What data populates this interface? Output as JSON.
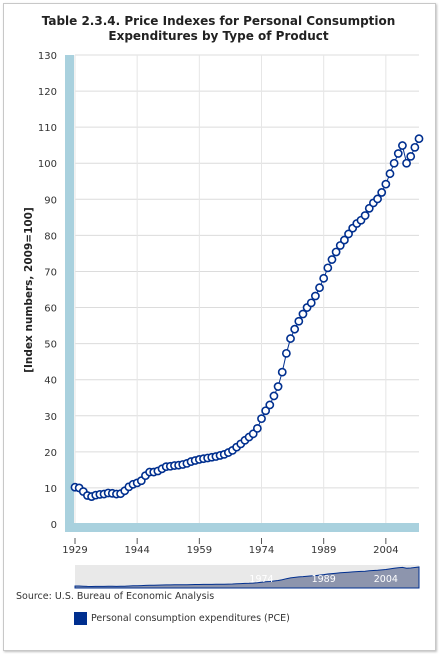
{
  "title": "Table 2.3.4. Price Indexes for Personal Consumption Expenditures by Type of Product",
  "source_text": "Source: U.S. Bureau of Economic Analysis",
  "colors": {
    "series": "#002f8f",
    "axis_band": "#a9d1de",
    "navigator_fill": "#8d95ad",
    "navigator_bg": "#e9e9e9"
  },
  "chart_data": {
    "type": "line",
    "ylabel": "[Index numbers, 2009=100]",
    "xlabel": "",
    "ylim": [
      0,
      130
    ],
    "yticks": [
      0,
      10,
      20,
      30,
      40,
      50,
      60,
      70,
      80,
      90,
      100,
      110,
      120,
      130
    ],
    "xlim": [
      1929,
      2012
    ],
    "xticks": [
      1929,
      1944,
      1959,
      1974,
      1989,
      2004
    ],
    "navigator_ticks": [
      1974,
      1989,
      2004
    ],
    "grid": true,
    "legend_position": "bottom-left",
    "series": [
      {
        "name": "Personal consumption expenditures (PCE)",
        "x": [
          1929,
          1930,
          1931,
          1932,
          1933,
          1934,
          1935,
          1936,
          1937,
          1938,
          1939,
          1940,
          1941,
          1942,
          1943,
          1944,
          1945,
          1946,
          1947,
          1948,
          1949,
          1950,
          1951,
          1952,
          1953,
          1954,
          1955,
          1956,
          1957,
          1958,
          1959,
          1960,
          1961,
          1962,
          1963,
          1964,
          1965,
          1966,
          1967,
          1968,
          1969,
          1970,
          1971,
          1972,
          1973,
          1974,
          1975,
          1976,
          1977,
          1978,
          1979,
          1980,
          1981,
          1982,
          1983,
          1984,
          1985,
          1986,
          1987,
          1988,
          1989,
          1990,
          1991,
          1992,
          1993,
          1994,
          1995,
          1996,
          1997,
          1998,
          1999,
          2000,
          2001,
          2002,
          2003,
          2004,
          2005,
          2006,
          2007,
          2008,
          2009,
          2010,
          2011,
          2012
        ],
        "values": [
          10.2,
          10.0,
          9.0,
          7.9,
          7.6,
          8.0,
          8.2,
          8.3,
          8.6,
          8.5,
          8.3,
          8.4,
          9.2,
          10.3,
          11.0,
          11.4,
          12.0,
          13.4,
          14.4,
          14.4,
          14.7,
          15.3,
          15.9,
          16.0,
          16.2,
          16.3,
          16.5,
          16.8,
          17.3,
          17.6,
          17.9,
          18.1,
          18.3,
          18.5,
          18.7,
          19.0,
          19.3,
          19.8,
          20.4,
          21.3,
          22.2,
          23.2,
          24.1,
          25.0,
          26.5,
          29.2,
          31.4,
          33.0,
          35.5,
          38.1,
          42.1,
          47.3,
          51.4,
          54.0,
          56.2,
          58.2,
          60.0,
          61.3,
          63.2,
          65.5,
          68.1,
          71.0,
          73.3,
          75.4,
          77.2,
          78.7,
          80.4,
          82.0,
          83.3,
          84.2,
          85.5,
          87.5,
          89.0,
          90.1,
          91.9,
          94.2,
          97.1,
          100.0,
          102.7,
          104.9,
          100.0,
          101.9,
          104.4,
          106.8
        ]
      }
    ]
  }
}
